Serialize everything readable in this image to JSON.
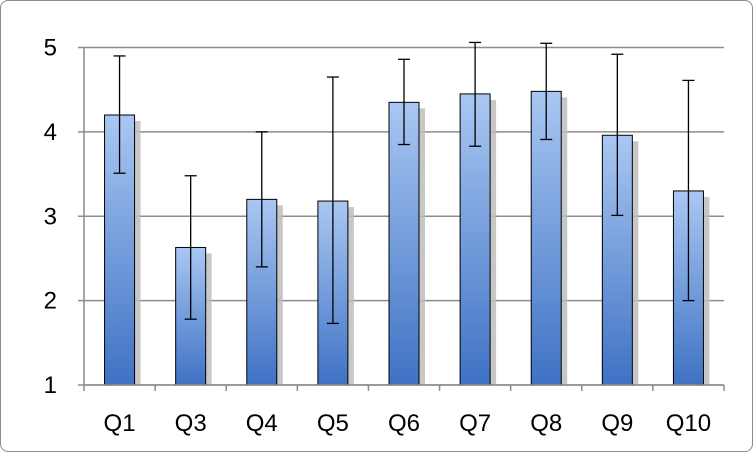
{
  "chart_data": {
    "type": "bar",
    "title": "",
    "xlabel": "",
    "ylabel": "",
    "categories": [
      "Q1",
      "Q3",
      "Q4",
      "Q5",
      "Q6",
      "Q7",
      "Q8",
      "Q9",
      "Q10"
    ],
    "values": [
      4.2,
      2.63,
      3.2,
      3.18,
      4.35,
      4.45,
      4.48,
      3.96,
      3.3
    ],
    "error_bars": [
      {
        "low": 3.51,
        "high": 4.9
      },
      {
        "low": 1.78,
        "high": 3.48
      },
      {
        "low": 2.4,
        "high": 4.0
      },
      {
        "low": 1.73,
        "high": 4.65
      },
      {
        "low": 3.85,
        "high": 4.86
      },
      {
        "low": 3.83,
        "high": 5.06
      },
      {
        "low": 3.91,
        "high": 5.05
      },
      {
        "low": 3.01,
        "high": 4.92
      },
      {
        "low": 2.0,
        "high": 4.61
      }
    ],
    "ylim": [
      1,
      5
    ],
    "yticks": [
      "1",
      "2",
      "3",
      "4",
      "5"
    ],
    "grid": true,
    "legend": "none",
    "colors": {
      "bar_top": "#a9c7f2",
      "bar_bottom": "#3f72c4",
      "bar_stroke": "#000000",
      "gridline": "#8c8c8c",
      "shadow": "#bdbdbd"
    }
  }
}
